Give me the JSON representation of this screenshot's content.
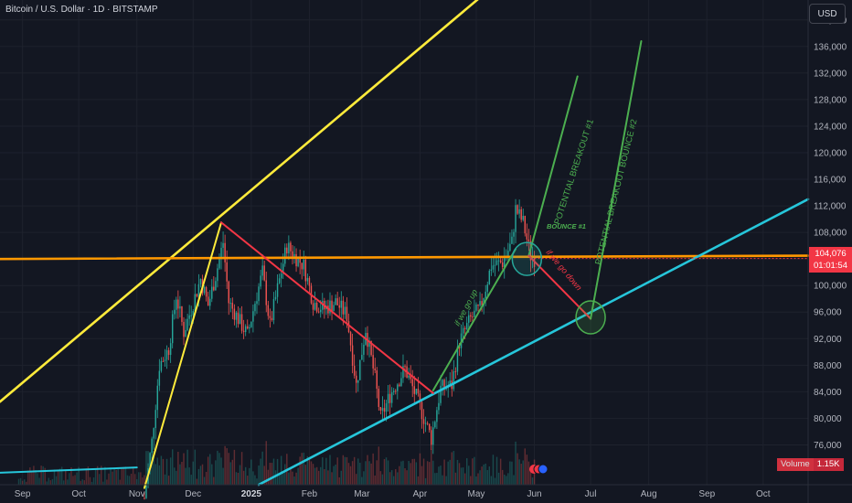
{
  "header": {
    "symbol_title": "Bitcoin / U.S. Dollar · 1D · BITSTAMP",
    "currency_button": "USD"
  },
  "price_scale": {
    "current_price": "104,076",
    "countdown": "01:01:54",
    "volume_label": "Volume",
    "volume_value": "1.15K"
  },
  "colors": {
    "background": "#131722",
    "up": "#26a69a",
    "down": "#ef5350",
    "resistance": "#ffeb3b",
    "horizontal": "#ff9800",
    "support": "#26c6da",
    "projection": "#4caf50",
    "downtrend": "#f23645"
  },
  "chart_data": {
    "type": "candlestick",
    "title": "Bitcoin / U.S. Dollar · 1D · BITSTAMP",
    "y_ticks": [
      76000,
      80000,
      84000,
      88000,
      92000,
      96000,
      100000,
      104000,
      108000,
      112000,
      116000,
      120000,
      124000,
      128000,
      132000,
      136000,
      140000
    ],
    "y_tick_labels": [
      "76,000",
      "80,000",
      "84,000",
      "88,000",
      "92,000",
      "96,000",
      "100,000",
      "104,000",
      "108,000",
      "112,000",
      "116,000",
      "120,000",
      "124,000",
      "128,000",
      "132,000",
      "136,000",
      "140,000"
    ],
    "ylim": [
      70000,
      143000
    ],
    "x_ticks": [
      {
        "label": "Sep",
        "date": "2024-09-01"
      },
      {
        "label": "Oct",
        "date": "2024-10-01"
      },
      {
        "label": "Nov",
        "date": "2024-11-01"
      },
      {
        "label": "Dec",
        "date": "2024-12-01"
      },
      {
        "label": "2025",
        "date": "2025-01-01"
      },
      {
        "label": "Feb",
        "date": "2025-02-01"
      },
      {
        "label": "Mar",
        "date": "2025-03-01"
      },
      {
        "label": "Apr",
        "date": "2025-04-01"
      },
      {
        "label": "May",
        "date": "2025-05-01"
      },
      {
        "label": "Jun",
        "date": "2025-06-01"
      },
      {
        "label": "Jul",
        "date": "2025-07-01"
      },
      {
        "label": "Aug",
        "date": "2025-08-01"
      },
      {
        "label": "Sep",
        "date": "2025-09-01"
      },
      {
        "label": "Oct",
        "date": "2025-10-01"
      }
    ],
    "xlim": [
      "2024-08-20",
      "2025-10-25"
    ],
    "price_path": [
      [
        "2024-11-05",
        68000
      ],
      [
        "2024-11-09",
        76500
      ],
      [
        "2024-11-13",
        88000
      ],
      [
        "2024-11-18",
        90500
      ],
      [
        "2024-11-22",
        98500
      ],
      [
        "2024-11-26",
        93000
      ],
      [
        "2024-11-30",
        96500
      ],
      [
        "2024-12-05",
        101000
      ],
      [
        "2024-12-09",
        97000
      ],
      [
        "2024-12-13",
        101500
      ],
      [
        "2024-12-17",
        106500
      ],
      [
        "2024-12-20",
        97500
      ],
      [
        "2024-12-26",
        94500
      ],
      [
        "2024-12-30",
        92500
      ],
      [
        "2025-01-03",
        97500
      ],
      [
        "2025-01-07",
        102000
      ],
      [
        "2025-01-11",
        94000
      ],
      [
        "2025-01-15",
        99500
      ],
      [
        "2025-01-20",
        106000
      ],
      [
        "2025-01-24",
        104500
      ],
      [
        "2025-01-29",
        103000
      ],
      [
        "2025-02-03",
        97500
      ],
      [
        "2025-02-09",
        96500
      ],
      [
        "2025-02-15",
        97500
      ],
      [
        "2025-02-21",
        95500
      ],
      [
        "2025-02-26",
        85000
      ],
      [
        "2025-03-03",
        93500
      ],
      [
        "2025-03-08",
        86000
      ],
      [
        "2025-03-11",
        80000
      ],
      [
        "2025-03-16",
        83500
      ],
      [
        "2025-03-24",
        87500
      ],
      [
        "2025-03-31",
        82500
      ],
      [
        "2025-04-07",
        77000
      ],
      [
        "2025-04-12",
        84500
      ],
      [
        "2025-04-18",
        85000
      ],
      [
        "2025-04-22",
        91500
      ],
      [
        "2025-04-28",
        95000
      ],
      [
        "2025-05-03",
        96500
      ],
      [
        "2025-05-09",
        103000
      ],
      [
        "2025-05-15",
        103500
      ],
      [
        "2025-05-20",
        106500
      ],
      [
        "2025-05-22",
        111500
      ],
      [
        "2025-05-26",
        109500
      ],
      [
        "2025-05-30",
        104500
      ],
      [
        "2025-06-01",
        104076
      ]
    ],
    "annotations": [
      {
        "kind": "line",
        "name": "resistance-channel-line",
        "color": "#ffeb3b",
        "from": [
          "2024-08-20",
          82500
        ],
        "to": [
          "2025-10-25",
          185000
        ]
      },
      {
        "kind": "line",
        "name": "horizontal-resistance-line",
        "color": "#ff9800",
        "from": [
          "2024-08-20",
          104000
        ],
        "to": [
          "2025-10-25",
          104500
        ]
      },
      {
        "kind": "line",
        "name": "support-channel-line",
        "color": "#26c6da",
        "from": [
          "2025-01-05",
          70000
        ],
        "to": [
          "2025-10-25",
          113000
        ]
      },
      {
        "kind": "line",
        "name": "old-support-segment",
        "color": "#26c6da",
        "from": [
          "2024-08-20",
          71800
        ],
        "to": [
          "2024-11-01",
          72600
        ]
      },
      {
        "kind": "line",
        "name": "nov-rally-line",
        "color": "#ffeb3b",
        "from": [
          "2024-11-05",
          69500
        ],
        "to": [
          "2024-12-16",
          109500
        ]
      },
      {
        "kind": "line",
        "name": "downtrend-line",
        "color": "#f23645",
        "from": [
          "2024-12-16",
          109500
        ],
        "to": [
          "2025-04-08",
          83800
        ]
      },
      {
        "kind": "line",
        "name": "april-rally-line",
        "color": "#4caf50",
        "from": [
          "2025-04-08",
          84200
        ],
        "to": [
          "2025-05-22",
          105500
        ]
      },
      {
        "kind": "line",
        "name": "breakout-projection-1",
        "color": "#4caf50",
        "from": [
          "2025-05-29",
          104500
        ],
        "to": [
          "2025-06-24",
          131500
        ]
      },
      {
        "kind": "line",
        "name": "drop-projection",
        "color": "#f23645",
        "from": [
          "2025-05-29",
          104500
        ],
        "to": [
          "2025-07-01",
          95000
        ]
      },
      {
        "kind": "line",
        "name": "breakout-projection-2",
        "color": "#4caf50",
        "from": [
          "2025-07-01",
          95000
        ],
        "to": [
          "2025-07-28",
          136800
        ]
      },
      {
        "kind": "circle",
        "name": "bounce-1-circle",
        "color": "#26a69a",
        "at": [
          "2025-05-28",
          104000
        ]
      },
      {
        "kind": "circle",
        "name": "bounce-2-circle",
        "color": "#4caf50",
        "at": [
          "2025-07-01",
          95200
        ]
      }
    ],
    "labels": [
      {
        "name": "label-if-we-go-up",
        "text": "if we go up",
        "color": "#4caf50"
      },
      {
        "name": "label-bounce-1",
        "text": "BOUNCE #1",
        "color": "#4caf50"
      },
      {
        "name": "label-potential-breakout-1",
        "text": "POTENTIAL BREAKOUT #1",
        "color": "#4caf50"
      },
      {
        "name": "label-potential-breakout-bounce-2",
        "text": "POTENTIAL BREAKOUT BOUNCE #2",
        "color": "#4caf50"
      },
      {
        "name": "label-if-we-go-down",
        "text": "if we go down",
        "color": "#f23645"
      }
    ]
  }
}
